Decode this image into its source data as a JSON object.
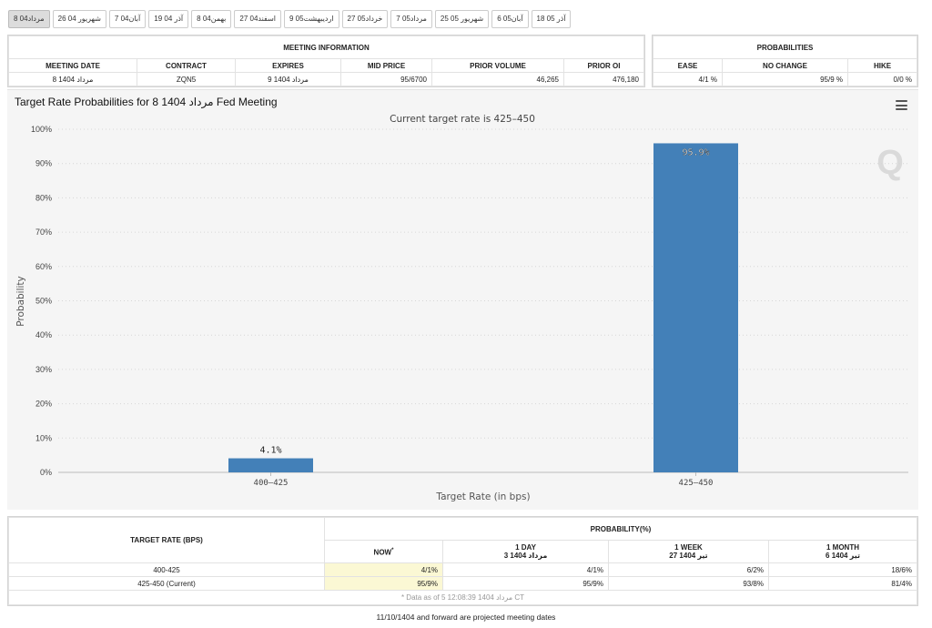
{
  "tabs": [
    {
      "label": "8 مرداد04",
      "active": true
    },
    {
      "label": "26 شهریور 04",
      "active": false
    },
    {
      "label": "7 آبان04",
      "active": false
    },
    {
      "label": "19 آذر 04",
      "active": false
    },
    {
      "label": "8 بهمن04",
      "active": false
    },
    {
      "label": "27 اسفند04",
      "active": false
    },
    {
      "label": "9 اردیبهشت05",
      "active": false
    },
    {
      "label": "27 خرداد05",
      "active": false
    },
    {
      "label": "7 مرداد05",
      "active": false
    },
    {
      "label": "25 شهریور 05",
      "active": false
    },
    {
      "label": "6 آبان05",
      "active": false
    },
    {
      "label": "18 آذر 05",
      "active": false
    }
  ],
  "meeting_info": {
    "heading": "MEETING INFORMATION",
    "headers": [
      "MEETING DATE",
      "CONTRACT",
      "EXPIRES",
      "MID PRICE",
      "PRIOR VOLUME",
      "PRIOR OI"
    ],
    "row": [
      "8 مرداد 1404",
      "ZQN5",
      "9 مرداد 1404",
      "95/6700",
      "46,265",
      "476,180"
    ]
  },
  "probabilities": {
    "heading": "PROBABILITIES",
    "headers": [
      "EASE",
      "NO CHANGE",
      "HIKE"
    ],
    "row": [
      "4/1 %",
      "95/9 %",
      "0/0 %"
    ]
  },
  "chart": {
    "title": "Target Rate Probabilities for 8 مرداد 1404 Fed Meeting",
    "menu_icon": "hamburger-menu-icon",
    "watermark": "Q",
    "bar_color": "#4380b8"
  },
  "chart_data": {
    "type": "bar",
    "title": "Target Rate Probabilities for 8 مرداد 1404 Fed Meeting",
    "subtitle": "Current target rate is 425–450",
    "xlabel": "Target Rate (in bps)",
    "ylabel": "Probability",
    "categories": [
      "400–425",
      "425–450"
    ],
    "values": [
      4.1,
      95.9
    ],
    "data_labels": [
      "4.1%",
      "95.9%"
    ],
    "ylim": [
      0,
      100
    ],
    "yticks": [
      "0%",
      "10%",
      "20%",
      "30%",
      "40%",
      "50%",
      "60%",
      "70%",
      "80%",
      "90%",
      "100%"
    ],
    "grid": true,
    "legend": "none"
  },
  "probability_table": {
    "target_header": "TARGET RATE (BPS)",
    "group_header": "PROBABILITY(%)",
    "columns": [
      {
        "title": "NOW",
        "sup": "*",
        "sub": ""
      },
      {
        "title": "1 DAY",
        "sup": "",
        "sub": "3 مرداد 1404"
      },
      {
        "title": "1 WEEK",
        "sup": "",
        "sub": "27 تیر 1404"
      },
      {
        "title": "1 MONTH",
        "sup": "",
        "sub": "6 تیر 1404"
      }
    ],
    "rows": [
      {
        "rate": "400-425",
        "values": [
          "4/1%",
          "4/1%",
          "6/2%",
          "18/6%"
        ]
      },
      {
        "rate": "425-450 (Current)",
        "values": [
          "95/9%",
          "95/9%",
          "93/8%",
          "81/4%"
        ]
      }
    ],
    "note": "* Data as of 5 مرداد 1404 12:08:39 CT"
  },
  "footer_note": "11/10/1404 and forward are projected meeting dates"
}
